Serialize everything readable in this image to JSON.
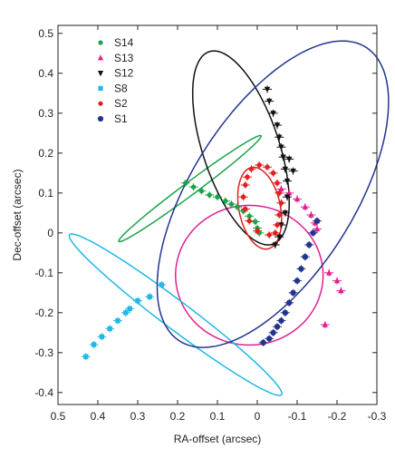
{
  "chart_data": {
    "type": "scatter",
    "xlabel": "RA-offset (arcsec)",
    "ylabel": "Dec-offset (arcsec)",
    "xlim": [
      0.5,
      -0.3
    ],
    "ylim": [
      -0.43,
      0.52
    ],
    "x_ticks": [
      "0.5",
      "0.4",
      "0.3",
      "0.2",
      "0.1",
      "0",
      "-0.1",
      "-0.2",
      "-0.3"
    ],
    "y_ticks": [
      "0.5",
      "0.4",
      "0.3",
      "0.2",
      "0.1",
      "0",
      "-0.1",
      "-0.2",
      "-0.3",
      "-0.4"
    ],
    "grid": false,
    "legend_position": "top-left",
    "series": [
      {
        "name": "S14",
        "color": "#1aa34a",
        "marker": "circle",
        "orbit": {
          "cx": 0.169,
          "cy": 0.111,
          "a": 0.222,
          "b": 0.016,
          "angle_deg": 143.4
        },
        "points": [
          [
            0.18,
            0.125
          ],
          [
            0.16,
            0.115
          ],
          [
            0.14,
            0.105
          ],
          [
            0.12,
            0.095
          ],
          [
            0.1,
            0.09
          ],
          [
            0.08,
            0.08
          ],
          [
            0.065,
            0.072
          ],
          [
            0.05,
            0.065
          ],
          [
            0.035,
            0.055
          ],
          [
            0.02,
            0.042
          ],
          [
            0.005,
            0.028
          ],
          [
            0.0,
            0.012
          ],
          [
            -0.005,
            0.0
          ]
        ]
      },
      {
        "name": "S13",
        "color": "#e0208f",
        "marker": "triangle-up",
        "orbit": {
          "cx": 0.02,
          "cy": -0.106,
          "a": 0.185,
          "b": 0.175,
          "angle_deg": 0
        },
        "points": [
          [
            -0.06,
            0.11
          ],
          [
            -0.08,
            0.1
          ],
          [
            -0.1,
            0.085
          ],
          [
            -0.12,
            0.065
          ],
          [
            -0.135,
            0.045
          ],
          [
            -0.145,
            0.025
          ],
          [
            -0.15,
            0.01
          ],
          [
            -0.18,
            -0.1
          ],
          [
            -0.2,
            -0.12
          ],
          [
            -0.21,
            -0.145
          ],
          [
            -0.17,
            -0.23
          ]
        ]
      },
      {
        "name": "S12",
        "color": "#111111",
        "marker": "triangle-down",
        "orbit": {
          "cx": 0.041,
          "cy": 0.213,
          "a": 0.254,
          "b": 0.096,
          "angle_deg": 71.7
        },
        "points": [
          [
            -0.025,
            0.36
          ],
          [
            -0.03,
            0.33
          ],
          [
            -0.04,
            0.3
          ],
          [
            -0.05,
            0.27
          ],
          [
            -0.055,
            0.24
          ],
          [
            -0.06,
            0.215
          ],
          [
            -0.065,
            0.19
          ],
          [
            -0.07,
            0.16
          ],
          [
            -0.075,
            0.13
          ],
          [
            -0.08,
            0.185
          ],
          [
            -0.09,
            0.155
          ],
          [
            -0.075,
            0.09
          ],
          [
            -0.07,
            0.05
          ],
          [
            -0.06,
            0.02
          ],
          [
            -0.055,
            -0.01
          ],
          [
            -0.045,
            -0.03
          ]
        ]
      },
      {
        "name": "S8",
        "color": "#1fb8e8",
        "marker": "square",
        "orbit": {
          "cx": 0.205,
          "cy": -0.205,
          "a": 0.333,
          "b": 0.035,
          "angle_deg": 37.0
        },
        "points": [
          [
            0.43,
            -0.31
          ],
          [
            0.41,
            -0.28
          ],
          [
            0.39,
            -0.26
          ],
          [
            0.37,
            -0.24
          ],
          [
            0.35,
            -0.22
          ],
          [
            0.33,
            -0.2
          ],
          [
            0.32,
            -0.19
          ],
          [
            0.3,
            -0.17
          ],
          [
            0.27,
            -0.16
          ],
          [
            0.24,
            -0.13
          ]
        ]
      },
      {
        "name": "S2",
        "color": "#e02020",
        "marker": "circle",
        "orbit": {
          "cx": -0.006,
          "cy": 0.062,
          "a": 0.104,
          "b": 0.052,
          "angle_deg": 78.7
        },
        "points": [
          [
            0.015,
            0.16
          ],
          [
            -0.005,
            0.17
          ],
          [
            -0.025,
            0.165
          ],
          [
            -0.04,
            0.15
          ],
          [
            -0.05,
            0.125
          ],
          [
            -0.055,
            0.1
          ],
          [
            -0.06,
            0.075
          ],
          [
            -0.055,
            0.045
          ],
          [
            -0.05,
            0.02
          ],
          [
            -0.045,
            0.0
          ],
          [
            -0.03,
            -0.005
          ],
          [
            0.0,
            0.005
          ],
          [
            0.02,
            0.03
          ],
          [
            0.03,
            0.06
          ],
          [
            0.035,
            0.09
          ],
          [
            0.03,
            0.12
          ],
          [
            0.025,
            0.14
          ]
        ]
      },
      {
        "name": "S1",
        "color": "#23348f",
        "marker": "circle-open",
        "orbit": {
          "cx": -0.039,
          "cy": 0.097,
          "a": 0.436,
          "b": 0.204,
          "angle_deg": 122.4
        },
        "points": [
          [
            -0.15,
            0.03
          ],
          [
            -0.14,
            0.0
          ],
          [
            -0.13,
            -0.03
          ],
          [
            -0.12,
            -0.06
          ],
          [
            -0.11,
            -0.09
          ],
          [
            -0.1,
            -0.12
          ],
          [
            -0.09,
            -0.15
          ],
          [
            -0.08,
            -0.175
          ],
          [
            -0.07,
            -0.2
          ],
          [
            -0.06,
            -0.22
          ],
          [
            -0.05,
            -0.235
          ],
          [
            -0.04,
            -0.25
          ],
          [
            -0.03,
            -0.265
          ],
          [
            -0.015,
            -0.275
          ]
        ]
      }
    ]
  }
}
